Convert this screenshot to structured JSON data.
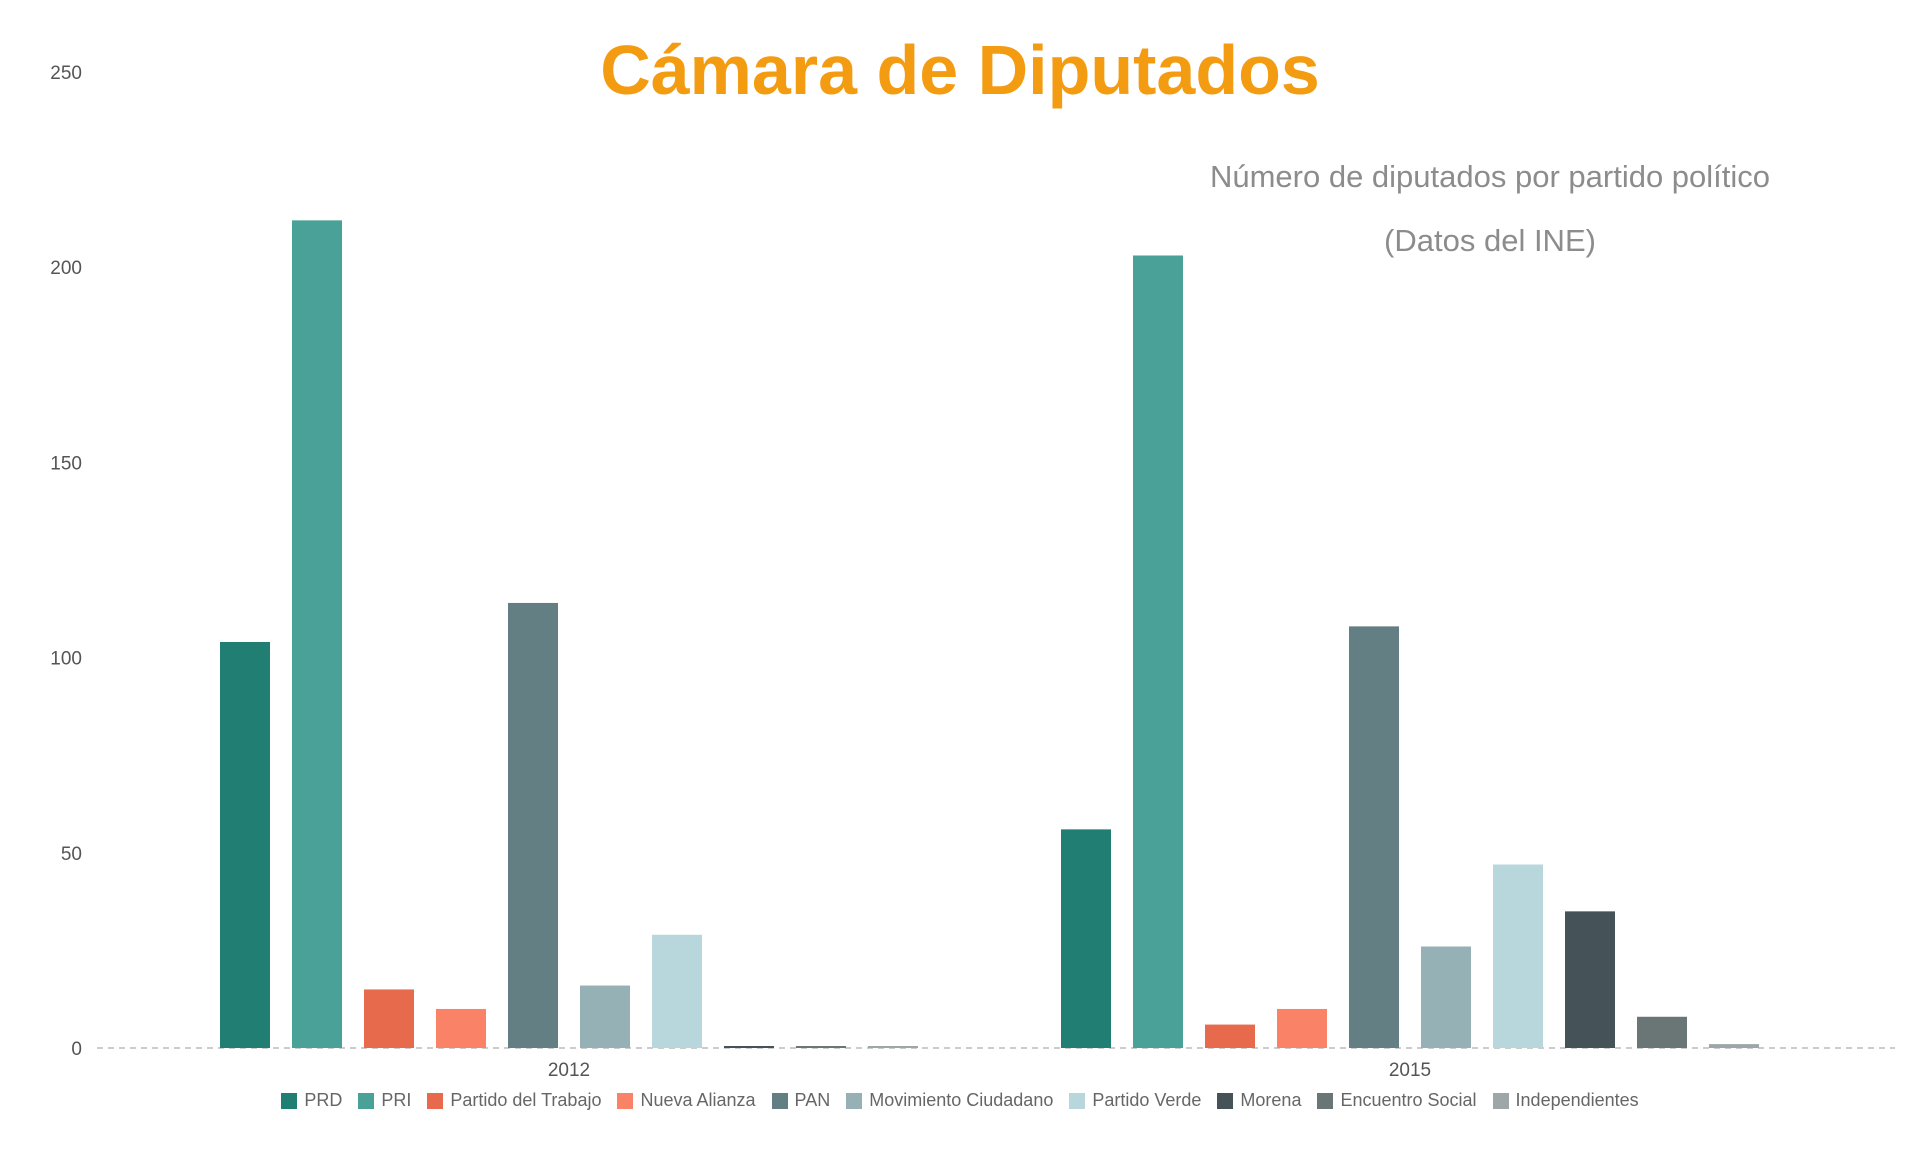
{
  "chart_data": {
    "type": "bar",
    "title": "Cámara de Diputados",
    "subtitle_lines": [
      "Número de diputados por partido político",
      "(Datos del INE)"
    ],
    "categories": [
      "2012",
      "2015"
    ],
    "ylim": [
      0,
      250
    ],
    "yticks": [
      "0",
      "50",
      "100",
      "150",
      "200",
      "250"
    ],
    "grid": false,
    "legend_position": "bottom",
    "series": [
      {
        "name": "PRD",
        "color": "#217e73",
        "values": [
          104,
          56
        ]
      },
      {
        "name": "PRI",
        "color": "#4aa197",
        "values": [
          212,
          203
        ]
      },
      {
        "name": "Partido del Trabajo",
        "color": "#e86a4d",
        "values": [
          15,
          6
        ]
      },
      {
        "name": "Nueva Alianza",
        "color": "#fa8266",
        "values": [
          10,
          10
        ]
      },
      {
        "name": "PAN",
        "color": "#637f83",
        "values": [
          114,
          108
        ]
      },
      {
        "name": "Movimiento Ciudadano",
        "color": "#95b1b5",
        "values": [
          16,
          26
        ]
      },
      {
        "name": "Partido Verde",
        "color": "#b8d7dc",
        "values": [
          29,
          47
        ]
      },
      {
        "name": "Morena",
        "color": "#455359",
        "values": [
          0,
          35
        ]
      },
      {
        "name": "Encuentro Social",
        "color": "#6a7576",
        "values": [
          0,
          8
        ]
      },
      {
        "name": "Independientes",
        "color": "#9ea7a8",
        "values": [
          0,
          1
        ]
      }
    ]
  }
}
